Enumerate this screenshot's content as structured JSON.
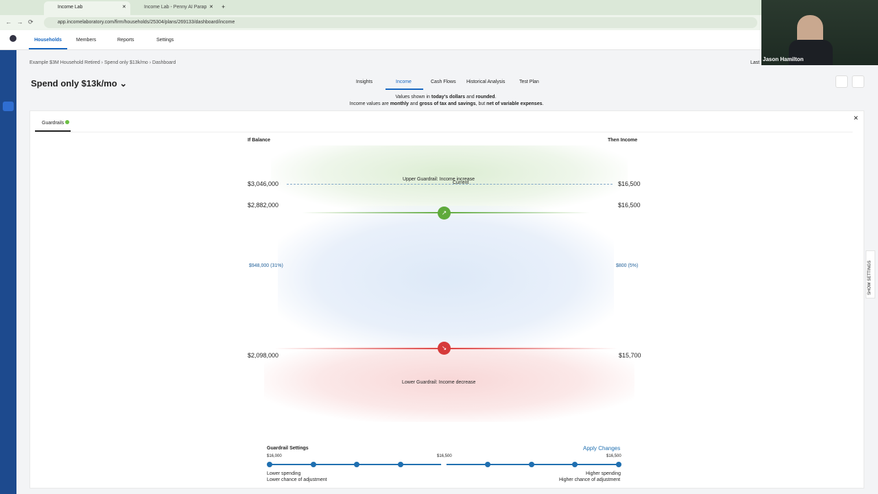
{
  "browser": {
    "tabs": [
      "Income Lab",
      "Income Lab - Penny AI Parap"
    ],
    "url": "app.incomelaboratory.com/firm/households/25304/plans/269133/dashboard/income"
  },
  "nav": [
    "Households",
    "Members",
    "Reports",
    "Settings"
  ],
  "breadcrumb": [
    "Example $3M Household Retired",
    "Spend only $13k/mo",
    "Dashboard"
  ],
  "last": "Last",
  "plan_title": "Spend only $13k/mo",
  "tabs": [
    "Insights",
    "Income",
    "Cash Flows",
    "Historical Analysis",
    "Test Plan"
  ],
  "notes": [
    [
      "Values shown in ",
      "today's dollars",
      " and ",
      "rounded",
      "."
    ],
    [
      "Income values are ",
      "monthly",
      " and ",
      "gross of tax and savings",
      ", but ",
      "net of variable expenses",
      "."
    ]
  ],
  "panel_tab": "Guardrails",
  "headers": {
    "balance": "If Balance",
    "income": "Then Income"
  },
  "rows": [
    {
      "balance": "$3,046,000",
      "income": "$16,500"
    },
    {
      "balance": "$2,882,000",
      "income": "$16,500"
    },
    {
      "balance": "$948,000 (31%)",
      "income": "$800 (5%)"
    },
    {
      "balance": "$2,098,000",
      "income": "$15,700"
    }
  ],
  "upper_label": "Upper Guardrail: Income increase",
  "current_label": "Current",
  "lower_label": "Lower Guardrail: Income decrease",
  "settings": {
    "title": "Guardrail Settings",
    "apply": "Apply Changes",
    "min": "$16,000",
    "mid": "$16,500",
    "max": "$16,500",
    "left": [
      "Lower spending",
      "Lower chance of adjustment"
    ],
    "right": [
      "Higher spending",
      "Higher chance of adjustment"
    ]
  },
  "show_settings": "SHOW SETTINGS",
  "video_name": "Jason Hamilton"
}
